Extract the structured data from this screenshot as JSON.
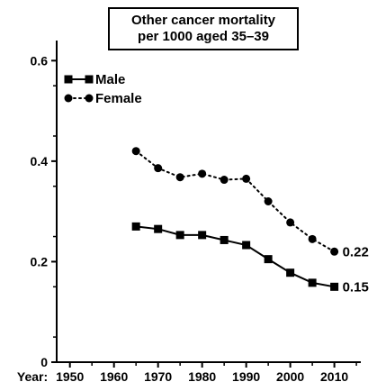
{
  "chart_data": {
    "type": "line",
    "title": [
      "Other cancer mortality",
      "per 1000 aged 35–39"
    ],
    "x_prefix": "Year:",
    "xlim": [
      1947,
      2016
    ],
    "ylim": [
      0,
      0.64
    ],
    "x_ticks": [
      1950,
      1960,
      1970,
      1980,
      1990,
      2000,
      2010
    ],
    "x_tick_labels": [
      "1950",
      "1960",
      "1970",
      "1980",
      "1990",
      "2000",
      "2010"
    ],
    "y_ticks": [
      0,
      0.2,
      0.4,
      0.6
    ],
    "y_tick_labels": [
      "0",
      "0.2",
      "0.4",
      "0.6"
    ],
    "legend_position": "top-left",
    "series": [
      {
        "name": "Male",
        "marker": "square",
        "line": "solid",
        "x": [
          1965,
          1970,
          1975,
          1980,
          1985,
          1990,
          1995,
          2000,
          2005,
          2010
        ],
        "values": [
          0.27,
          0.265,
          0.253,
          0.253,
          0.243,
          0.233,
          0.205,
          0.178,
          0.158,
          0.15
        ],
        "end_label": "0.15"
      },
      {
        "name": "Female",
        "marker": "circle",
        "line": "dotted",
        "x": [
          1965,
          1970,
          1975,
          1980,
          1985,
          1990,
          1995,
          2000,
          2005,
          2010
        ],
        "values": [
          0.42,
          0.386,
          0.368,
          0.375,
          0.363,
          0.365,
          0.32,
          0.278,
          0.245,
          0.22
        ],
        "end_label": "0.22"
      }
    ]
  }
}
